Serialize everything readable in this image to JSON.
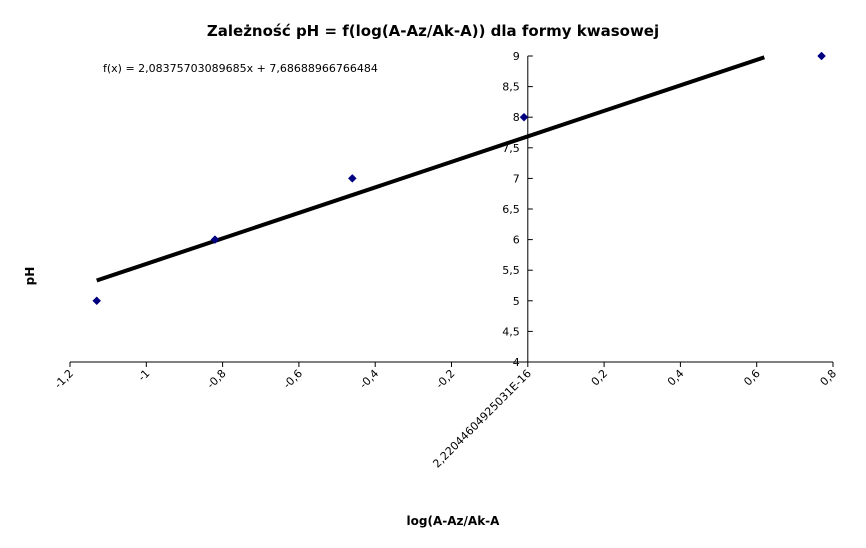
{
  "chart_data": {
    "type": "scatter",
    "title": "Zależność pH = f(log(A-Az/Ak-A)) dla formy kwasowej",
    "xlabel": "log(A-Az/Ak-A",
    "ylabel": "pH",
    "xlim": [
      -1.2,
      0.8
    ],
    "ylim": [
      4,
      9
    ],
    "x_ticks": [
      -1.2,
      -1,
      -0.8,
      -0.6,
      -0.4,
      -0.2,
      0,
      0.2,
      0.4,
      0.6,
      0.8
    ],
    "x_tick_labels": [
      "-1,2",
      "-1",
      "-0,8",
      "-0,6",
      "-0,4",
      "-0,2",
      "2,22044604925031E-16",
      "0,2",
      "0,4",
      "0,6",
      "0,8"
    ],
    "y_ticks": [
      4,
      4.5,
      5,
      5.5,
      6,
      6.5,
      7,
      7.5,
      8,
      8.5,
      9
    ],
    "y_tick_labels": [
      "4",
      "4,5",
      "5",
      "5,5",
      "6",
      "6,5",
      "7",
      "7,5",
      "8",
      "8,5",
      "9"
    ],
    "points": [
      {
        "x": -1.13,
        "y": 5
      },
      {
        "x": -0.82,
        "y": 6
      },
      {
        "x": -0.46,
        "y": 7
      },
      {
        "x": -0.01,
        "y": 8
      },
      {
        "x": 0.77,
        "y": 9
      }
    ],
    "trendline": {
      "slope": 2.08375703089685,
      "intercept": 7.68688966766484,
      "x_range": [
        -1.13,
        0.62
      ],
      "equation_label": "f(x) = 2,08375703089685x + 7,68688966766484"
    },
    "grid": false,
    "legend": "none",
    "colors": {
      "marker": "#000080",
      "trendline": "#000000",
      "axis": "#000000"
    }
  }
}
